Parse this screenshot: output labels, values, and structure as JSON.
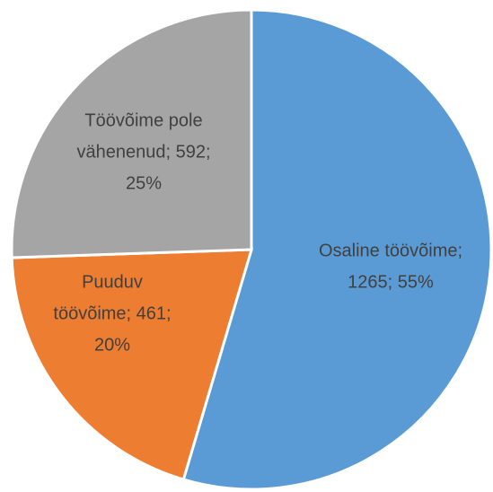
{
  "chart_data": {
    "type": "pie",
    "values": [
      1265,
      461,
      592
    ],
    "value_labels": [
      [
        "Osaline töövõime;",
        "1265; 55%"
      ],
      [
        "Puuduv",
        "töövõime; 461;",
        "20%"
      ],
      [
        "Töövõime pole",
        "vähenenud; 592;",
        "25%"
      ]
    ],
    "colors": [
      "#5b9bd5",
      "#ed7d31",
      "#a5a5a5"
    ]
  }
}
